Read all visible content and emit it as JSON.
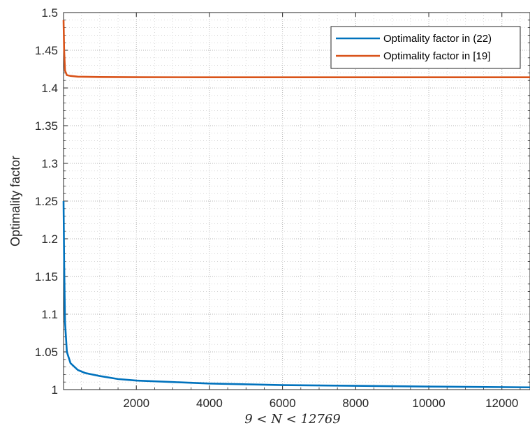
{
  "chart_data": {
    "type": "line",
    "title": "",
    "xlabel": "9 < N < 12769",
    "ylabel": "Optimality factor",
    "xlim": [
      9,
      12769
    ],
    "ylim": [
      1,
      1.5
    ],
    "x_ticks": [
      2000,
      4000,
      6000,
      8000,
      10000,
      12000
    ],
    "x_tick_labels": [
      "2000",
      "4000",
      "6000",
      "8000",
      "10000",
      "12000"
    ],
    "y_ticks": [
      1,
      1.05,
      1.1,
      1.15,
      1.2,
      1.25,
      1.3,
      1.35,
      1.4,
      1.45,
      1.5
    ],
    "y_tick_labels": [
      "1",
      "1.05",
      "1.1",
      "1.15",
      "1.2",
      "1.25",
      "1.3",
      "1.35",
      "1.4",
      "1.45",
      "1.5"
    ],
    "grid": true,
    "minor_grid": true,
    "legend_position": "top-right",
    "series": [
      {
        "name": "Optimality factor in (22)",
        "color": "#0072BD",
        "x": [
          9,
          25,
          49,
          100,
          200,
          400,
          600,
          1000,
          1500,
          2000,
          3000,
          4000,
          5000,
          6000,
          8000,
          10000,
          12769
        ],
        "y": [
          1.25,
          1.17,
          1.09,
          1.05,
          1.035,
          1.026,
          1.022,
          1.018,
          1.014,
          1.012,
          1.01,
          1.008,
          1.007,
          1.006,
          1.005,
          1.004,
          1.003
        ]
      },
      {
        "name": "Optimality factor in [19]",
        "color": "#D95319",
        "x": [
          9,
          25,
          49,
          100,
          200,
          400,
          1000,
          2000,
          4000,
          8000,
          12769
        ],
        "y": [
          1.49,
          1.45,
          1.423,
          1.417,
          1.416,
          1.415,
          1.4145,
          1.4143,
          1.4142,
          1.4142,
          1.4142
        ]
      }
    ]
  }
}
